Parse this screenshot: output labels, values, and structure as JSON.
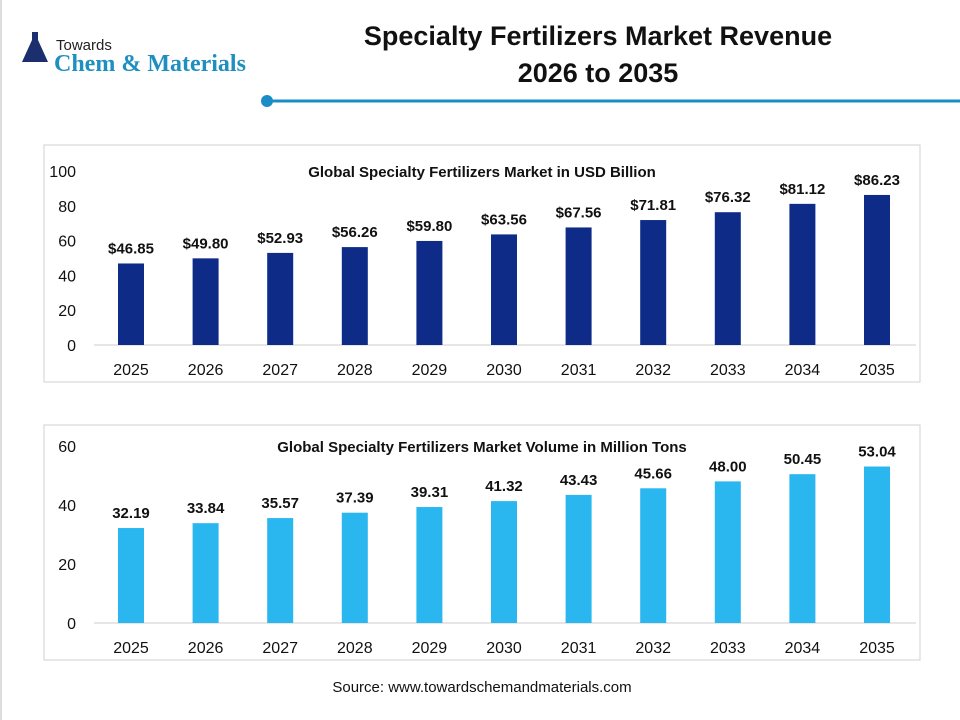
{
  "header": {
    "logo_top": "Towards",
    "logo_main": "Chem & Materials",
    "title_line1": "Specialty Fertilizers Market Revenue",
    "title_line2": "2026 to 2035",
    "accent_color": "#1a8cc8"
  },
  "chart_data": [
    {
      "type": "bar",
      "title": "Global Specialty Fertilizers Market in USD Billion",
      "categories": [
        "2025",
        "2026",
        "2027",
        "2028",
        "2029",
        "2030",
        "2031",
        "2032",
        "2033",
        "2034",
        "2035"
      ],
      "values": [
        46.85,
        49.8,
        52.93,
        56.26,
        59.8,
        63.56,
        67.56,
        71.81,
        76.32,
        81.12,
        86.23
      ],
      "labels": [
        "$46.85",
        "$49.80",
        "$52.93",
        "$56.26",
        "$59.80",
        "$63.56",
        "$67.56",
        "$71.81",
        "$76.32",
        "$81.12",
        "$86.23"
      ],
      "ylim": [
        0,
        100
      ],
      "yticks": [
        0,
        20,
        40,
        60,
        80,
        100
      ],
      "color": "#0d2b87",
      "grid": false
    },
    {
      "type": "bar",
      "title": "Global Specialty Fertilizers Market Volume in Million Tons",
      "categories": [
        "2025",
        "2026",
        "2027",
        "2028",
        "2029",
        "2030",
        "2031",
        "2032",
        "2033",
        "2034",
        "2035"
      ],
      "values": [
        32.19,
        33.84,
        35.57,
        37.39,
        39.31,
        41.32,
        43.43,
        45.66,
        48.0,
        50.45,
        53.04
      ],
      "labels": [
        "32.19",
        "33.84",
        "35.57",
        "37.39",
        "39.31",
        "41.32",
        "43.43",
        "45.66",
        "48.00",
        "50.45",
        "53.04"
      ],
      "ylim": [
        0,
        60
      ],
      "yticks": [
        0,
        20,
        40,
        60
      ],
      "color": "#2ab7f0",
      "grid": false
    }
  ],
  "footer": {
    "source": "Source: www.towardschemandmaterials.com"
  }
}
